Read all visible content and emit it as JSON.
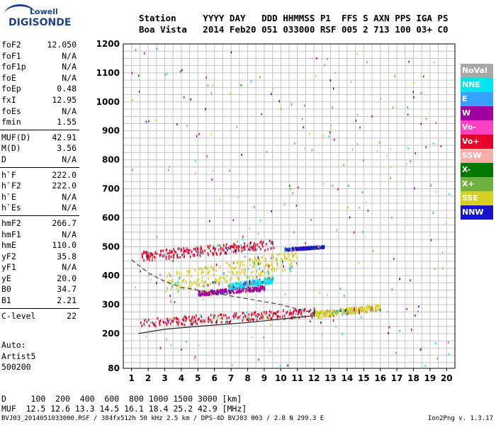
{
  "logo": {
    "brand": "Lowell",
    "product": "DIGISONDE"
  },
  "header": {
    "line1": "Station     YYYY DAY   DDD HHMMSS P1  FFS S AXN PPS IGA PS",
    "line2": "Boa Vista   2014 Feb20 051 033000 RSF 005 2 713 100 03+ C0"
  },
  "params": [
    {
      "label": "foF2",
      "value": "12.050"
    },
    {
      "label": "foF1",
      "value": "N/A"
    },
    {
      "label": "foF1p",
      "value": "N/A"
    },
    {
      "label": "foE",
      "value": "N/A"
    },
    {
      "label": "foEp",
      "value": "0.48"
    },
    {
      "label": "fxI",
      "value": "12.95"
    },
    {
      "label": "foEs",
      "value": "N/A"
    },
    {
      "label": "fmin",
      "value": "1.55"
    },
    {
      "sep": true
    },
    {
      "label": "MUF(D)",
      "value": "42.91"
    },
    {
      "label": "M(D)",
      "value": "3.56"
    },
    {
      "label": "D",
      "value": "N/A"
    },
    {
      "sep": true
    },
    {
      "label": "h`F",
      "value": "222.0"
    },
    {
      "label": "h`F2",
      "value": "222.0"
    },
    {
      "label": "h`E",
      "value": "N/A"
    },
    {
      "label": "h`Es",
      "value": "N/A"
    },
    {
      "sep": true
    },
    {
      "label": "hmF2",
      "value": "266.7"
    },
    {
      "label": "hmF1",
      "value": "N/A"
    },
    {
      "label": "hmE",
      "value": "110.0"
    },
    {
      "label": "yF2",
      "value": "35.8"
    },
    {
      "label": "yF1",
      "value": "N/A"
    },
    {
      "label": "yE",
      "value": "20.0"
    },
    {
      "label": "B0",
      "value": "34.7"
    },
    {
      "label": "B1",
      "value": "2.21"
    },
    {
      "sep": true
    },
    {
      "label": "C-level",
      "value": "22"
    }
  ],
  "auto": {
    "line1": "Auto:",
    "line2": "Artist5",
    "line3": "500200"
  },
  "bottom": {
    "d_line": "D     100  200  400  600  800 1000 1500 3000 [km]",
    "muf_line": "MUF  12.5 12.6 13.3 14.5 16.1 18.4 25.2 42.9 [MHz]"
  },
  "footer": {
    "left": "BVJ03_2014051033000.RSF / 384fx512h 50 kHz 2.5 km / DPS-4D BVJ03 003 / 2.8 N 299.3 E",
    "right": "Ion2Png v. 1.3.17"
  },
  "legend": [
    {
      "label": "NoVal",
      "color": "#a8a8a8"
    },
    {
      "label": "NNE",
      "color": "#00e5f0"
    },
    {
      "label": "E",
      "color": "#3aa0ff"
    },
    {
      "label": "W",
      "color": "#a000a0"
    },
    {
      "label": "Vo-",
      "color": "#ff40c0"
    },
    {
      "label": "Vo+",
      "color": "#e8002a"
    },
    {
      "label": "SSW",
      "color": "#f4b0a8"
    },
    {
      "label": "X-",
      "color": "#007800"
    },
    {
      "label": "X+",
      "color": "#70b040"
    },
    {
      "label": "SSE",
      "color": "#d8d020"
    },
    {
      "label": "NNW",
      "color": "#1414c8"
    }
  ],
  "chart_data": {
    "type": "scatter",
    "x_ticks": [
      "1",
      "2",
      "3",
      "4",
      "5",
      "6",
      "7",
      "8",
      "9",
      "10",
      "11",
      "12",
      "13",
      "14",
      "15",
      "16",
      "17",
      "18",
      "19",
      "20"
    ],
    "y_ticks": [
      "80",
      "200",
      "300",
      "400",
      "500",
      "600",
      "700",
      "800",
      "900",
      "1000",
      "1100",
      "1200"
    ],
    "xlim": [
      0.5,
      20.5
    ],
    "ylim": [
      80,
      1200
    ],
    "grid": true,
    "clusters": [
      {
        "name": "Vo+",
        "x": [
          1.6,
          9.6
        ],
        "y": [
          455,
          520
        ],
        "color": "#e8002a"
      },
      {
        "name": "Vo+",
        "x": [
          1.5,
          12.2
        ],
        "y": [
          225,
          285
        ],
        "color": "#e8002a"
      },
      {
        "name": "W",
        "x": [
          5.0,
          9.0
        ],
        "y": [
          335,
          365
        ],
        "color": "#a000a0"
      },
      {
        "name": "NNE",
        "x": [
          6.8,
          9.5
        ],
        "y": [
          355,
          395
        ],
        "color": "#00e5f0"
      },
      {
        "name": "SSE",
        "x": [
          12.0,
          16.0
        ],
        "y": [
          258,
          300
        ],
        "color": "#d8d020"
      },
      {
        "name": "SSE",
        "x": [
          3.0,
          11.0
        ],
        "y": [
          340,
          480
        ],
        "color": "#d8d020"
      },
      {
        "name": "NNW",
        "x": [
          10.2,
          12.6
        ],
        "y": [
          490,
          505
        ],
        "color": "#1414c8"
      }
    ],
    "trace_solid": [
      [
        1.4,
        200
      ],
      [
        3,
        215
      ],
      [
        5,
        225
      ],
      [
        8,
        238
      ],
      [
        10,
        250
      ],
      [
        12,
        262
      ],
      [
        12.05,
        280
      ]
    ],
    "trace_dashed": [
      [
        1.0,
        455
      ],
      [
        2,
        410
      ],
      [
        3,
        380
      ],
      [
        4,
        360
      ],
      [
        6,
        340
      ],
      [
        8,
        320
      ],
      [
        10,
        300
      ],
      [
        11,
        285
      ],
      [
        12.0,
        272
      ]
    ]
  }
}
